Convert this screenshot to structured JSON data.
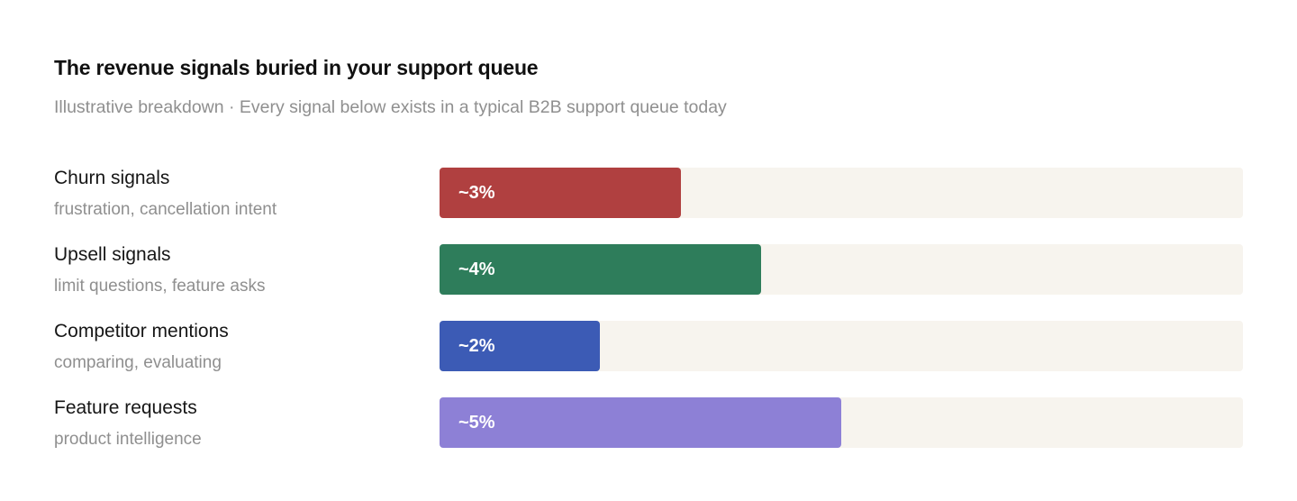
{
  "chart_data": {
    "type": "bar",
    "orientation": "horizontal",
    "title": "The revenue signals buried in your support queue",
    "subtitle": "Illustrative breakdown · Every signal below exists in a typical B2B support queue today",
    "xlim": [
      0,
      10
    ],
    "grid": false,
    "legend": "none",
    "categories": [
      "Churn signals",
      "Upsell signals",
      "Competitor mentions",
      "Feature requests"
    ],
    "category_descriptions": [
      "frustration, cancellation intent",
      "limit questions, feature asks",
      "comparing, evaluating",
      "product intelligence"
    ],
    "values": [
      3,
      4,
      2,
      5
    ],
    "data_labels": [
      "~3%",
      "~4%",
      "~2%",
      "~5%"
    ],
    "colors": [
      "#b04040",
      "#2e7d5b",
      "#3c5bb5",
      "#8d80d6"
    ],
    "track_color": "#f7f4ee"
  }
}
